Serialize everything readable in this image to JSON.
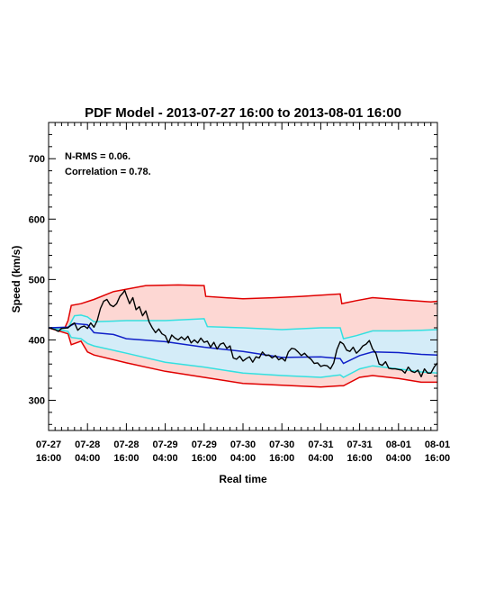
{
  "chart_data": {
    "type": "line",
    "title": "PDF Model - 2013-07-27 16:00 to 2013-08-01 16:00",
    "xlabel": "Real time",
    "ylabel": "Speed (km/s)",
    "xlim": [
      0,
      120
    ],
    "ylim": [
      250,
      760
    ],
    "x_ticks": [
      0,
      12,
      24,
      36,
      48,
      60,
      72,
      84,
      96,
      108,
      120
    ],
    "x_tick_labels": [
      [
        "07-27",
        "16:00"
      ],
      [
        "07-28",
        "04:00"
      ],
      [
        "07-28",
        "16:00"
      ],
      [
        "07-29",
        "04:00"
      ],
      [
        "07-29",
        "16:00"
      ],
      [
        "07-30",
        "04:00"
      ],
      [
        "07-30",
        "16:00"
      ],
      [
        "07-31",
        "04:00"
      ],
      [
        "07-31",
        "16:00"
      ],
      [
        "08-01",
        "04:00"
      ],
      [
        "08-01",
        "16:00"
      ]
    ],
    "y_ticks": [
      300,
      400,
      500,
      600,
      700
    ],
    "annotations": [
      "N-RMS = 0.06.",
      "Correlation = 0.78."
    ],
    "colors": {
      "outer_band_fill": "#fdd7d3",
      "outer_band_line": "#e00000",
      "inner_band_fill": "#d4ecf8",
      "inner_band_line": "#33e0e0",
      "median_line": "#1020c8",
      "observed_line": "#000000"
    },
    "series": [
      {
        "role": "outer-upper",
        "points": [
          [
            0,
            420
          ],
          [
            5,
            420
          ],
          [
            6,
            432
          ],
          [
            7,
            457
          ],
          [
            10,
            460
          ],
          [
            14,
            467
          ],
          [
            20,
            480
          ],
          [
            30,
            490
          ],
          [
            40,
            491
          ],
          [
            48,
            490
          ],
          [
            48.5,
            472
          ],
          [
            60,
            468
          ],
          [
            70,
            470
          ],
          [
            78,
            472
          ],
          [
            90,
            476
          ],
          [
            90.5,
            460
          ],
          [
            95,
            465
          ],
          [
            100,
            470
          ],
          [
            110,
            466
          ],
          [
            118,
            463
          ],
          [
            120,
            464
          ]
        ]
      },
      {
        "role": "inner-upper",
        "points": [
          [
            0,
            420
          ],
          [
            6,
            420
          ],
          [
            8,
            440
          ],
          [
            10,
            441
          ],
          [
            12,
            438
          ],
          [
            14,
            430
          ],
          [
            24,
            432
          ],
          [
            36,
            432
          ],
          [
            48,
            435
          ],
          [
            49,
            422
          ],
          [
            60,
            420
          ],
          [
            72,
            417
          ],
          [
            84,
            420
          ],
          [
            90,
            420
          ],
          [
            91,
            402
          ],
          [
            95,
            407
          ],
          [
            100,
            415
          ],
          [
            108,
            415
          ],
          [
            115,
            416
          ],
          [
            120,
            417
          ]
        ]
      },
      {
        "role": "median",
        "points": [
          [
            0,
            420
          ],
          [
            6,
            421
          ],
          [
            8,
            427
          ],
          [
            12,
            425
          ],
          [
            14,
            412
          ],
          [
            20,
            409
          ],
          [
            24,
            402
          ],
          [
            36,
            397
          ],
          [
            48,
            388
          ],
          [
            60,
            381
          ],
          [
            72,
            371
          ],
          [
            84,
            372
          ],
          [
            90,
            369
          ],
          [
            91,
            361
          ],
          [
            96,
            374
          ],
          [
            100,
            380
          ],
          [
            108,
            379
          ],
          [
            115,
            376
          ],
          [
            120,
            375
          ]
        ]
      },
      {
        "role": "inner-lower",
        "points": [
          [
            0,
            420
          ],
          [
            6,
            414
          ],
          [
            7,
            404
          ],
          [
            10,
            402
          ],
          [
            12,
            394
          ],
          [
            14,
            390
          ],
          [
            24,
            378
          ],
          [
            36,
            363
          ],
          [
            48,
            355
          ],
          [
            60,
            345
          ],
          [
            72,
            341
          ],
          [
            84,
            338
          ],
          [
            90,
            342
          ],
          [
            91,
            338
          ],
          [
            96,
            352
          ],
          [
            100,
            357
          ],
          [
            108,
            352
          ],
          [
            115,
            347
          ],
          [
            120,
            345
          ]
        ]
      },
      {
        "role": "outer-lower",
        "points": [
          [
            0,
            420
          ],
          [
            6,
            410
          ],
          [
            7,
            392
          ],
          [
            10,
            398
          ],
          [
            12,
            380
          ],
          [
            14,
            375
          ],
          [
            24,
            362
          ],
          [
            36,
            348
          ],
          [
            48,
            338
          ],
          [
            60,
            328
          ],
          [
            72,
            325
          ],
          [
            84,
            322
          ],
          [
            90,
            324
          ],
          [
            91,
            324
          ],
          [
            96,
            338
          ],
          [
            100,
            341
          ],
          [
            108,
            336
          ],
          [
            115,
            330
          ],
          [
            120,
            330
          ]
        ]
      },
      {
        "role": "observed",
        "points": [
          [
            0,
            420
          ],
          [
            2,
            417
          ],
          [
            3,
            414
          ],
          [
            4,
            419
          ],
          [
            6,
            420
          ],
          [
            7,
            425
          ],
          [
            8,
            428
          ],
          [
            9,
            416
          ],
          [
            10,
            421
          ],
          [
            11,
            423
          ],
          [
            12,
            419
          ],
          [
            13,
            428
          ],
          [
            14,
            421
          ],
          [
            15,
            432
          ],
          [
            16,
            452
          ],
          [
            17,
            464
          ],
          [
            18,
            467
          ],
          [
            19,
            458
          ],
          [
            20,
            455
          ],
          [
            21,
            460
          ],
          [
            22,
            472
          ],
          [
            23,
            478
          ],
          [
            23.5,
            482
          ],
          [
            24,
            474
          ],
          [
            25,
            460
          ],
          [
            26,
            470
          ],
          [
            27,
            450
          ],
          [
            28,
            455
          ],
          [
            29,
            440
          ],
          [
            30,
            448
          ],
          [
            31,
            430
          ],
          [
            32,
            420
          ],
          [
            33,
            412
          ],
          [
            34,
            418
          ],
          [
            35,
            410
          ],
          [
            36,
            407
          ],
          [
            37,
            395
          ],
          [
            38,
            408
          ],
          [
            39,
            403
          ],
          [
            40,
            400
          ],
          [
            41,
            405
          ],
          [
            42,
            400
          ],
          [
            43,
            406
          ],
          [
            44,
            395
          ],
          [
            45,
            400
          ],
          [
            46,
            395
          ],
          [
            47,
            403
          ],
          [
            48,
            396
          ],
          [
            49,
            398
          ],
          [
            50,
            388
          ],
          [
            51,
            396
          ],
          [
            52,
            385
          ],
          [
            53,
            393
          ],
          [
            54,
            395
          ],
          [
            55,
            386
          ],
          [
            56,
            390
          ],
          [
            57,
            370
          ],
          [
            58,
            368
          ],
          [
            59,
            373
          ],
          [
            60,
            365
          ],
          [
            61,
            369
          ],
          [
            62,
            372
          ],
          [
            63,
            363
          ],
          [
            64,
            372
          ],
          [
            65,
            370
          ],
          [
            66,
            380
          ],
          [
            67,
            374
          ],
          [
            68,
            375
          ],
          [
            69,
            370
          ],
          [
            70,
            374
          ],
          [
            71,
            367
          ],
          [
            72,
            370
          ],
          [
            73,
            365
          ],
          [
            74,
            380
          ],
          [
            75,
            386
          ],
          [
            76,
            385
          ],
          [
            77,
            380
          ],
          [
            78,
            374
          ],
          [
            79,
            378
          ],
          [
            80,
            372
          ],
          [
            81,
            368
          ],
          [
            82,
            361
          ],
          [
            83,
            362
          ],
          [
            84,
            356
          ],
          [
            85,
            358
          ],
          [
            86,
            357
          ],
          [
            87,
            352
          ],
          [
            88,
            362
          ],
          [
            89,
            384
          ],
          [
            90,
            397
          ],
          [
            91,
            393
          ],
          [
            92,
            383
          ],
          [
            93,
            381
          ],
          [
            94,
            388
          ],
          [
            95,
            378
          ],
          [
            96,
            383
          ],
          [
            97,
            390
          ],
          [
            98,
            393
          ],
          [
            99,
            399
          ],
          [
            100,
            385
          ],
          [
            101,
            378
          ],
          [
            102,
            360
          ],
          [
            103,
            358
          ],
          [
            104,
            364
          ],
          [
            105,
            353
          ],
          [
            106,
            352
          ],
          [
            107,
            352
          ],
          [
            108,
            351
          ],
          [
            109,
            350
          ],
          [
            110,
            345
          ],
          [
            111,
            355
          ],
          [
            112,
            348
          ],
          [
            113,
            346
          ],
          [
            114,
            350
          ],
          [
            115,
            339
          ],
          [
            116,
            352
          ],
          [
            117,
            345
          ],
          [
            118,
            345
          ],
          [
            119,
            355
          ],
          [
            120,
            362
          ]
        ]
      }
    ]
  }
}
